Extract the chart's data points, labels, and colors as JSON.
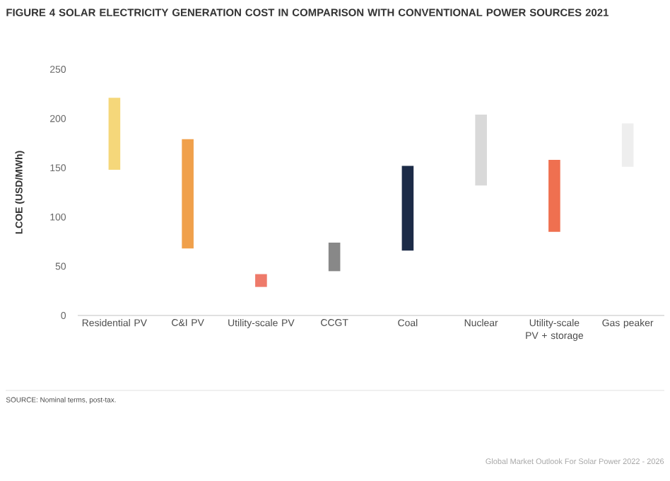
{
  "chart_data": {
    "type": "bar",
    "title": "FIGURE 4 SOLAR ELECTRICITY GENERATION COST IN COMPARISON WITH CONVENTIONAL POWER SOURCES 2021",
    "ylabel": "LCOE (USD/MWh)",
    "categories": [
      "Residential PV",
      "C&I PV",
      "Utility-scale PV",
      "CCGT",
      "Coal",
      "Nuclear",
      "Utility-scale PV + storage",
      "Gas peaker"
    ],
    "base": [
      148,
      68,
      29,
      45,
      66,
      132,
      85,
      151
    ],
    "values": [
      73,
      111,
      13,
      29,
      86,
      72,
      73,
      44
    ],
    "colors": [
      "#f5d77a",
      "#f0a04b",
      "#ee7a6a",
      "#888888",
      "#1c2b47",
      "#d9d9d9",
      "#ef7050",
      "#eeeeee"
    ],
    "ylim": [
      0,
      250
    ],
    "yticks": [
      0,
      50,
      100,
      150,
      200,
      250
    ],
    "annotations": [
      "SOURCE: Nominal terms, post-tax.",
      "Global Market Outlook For Solar Power 2022 - 2026"
    ]
  }
}
